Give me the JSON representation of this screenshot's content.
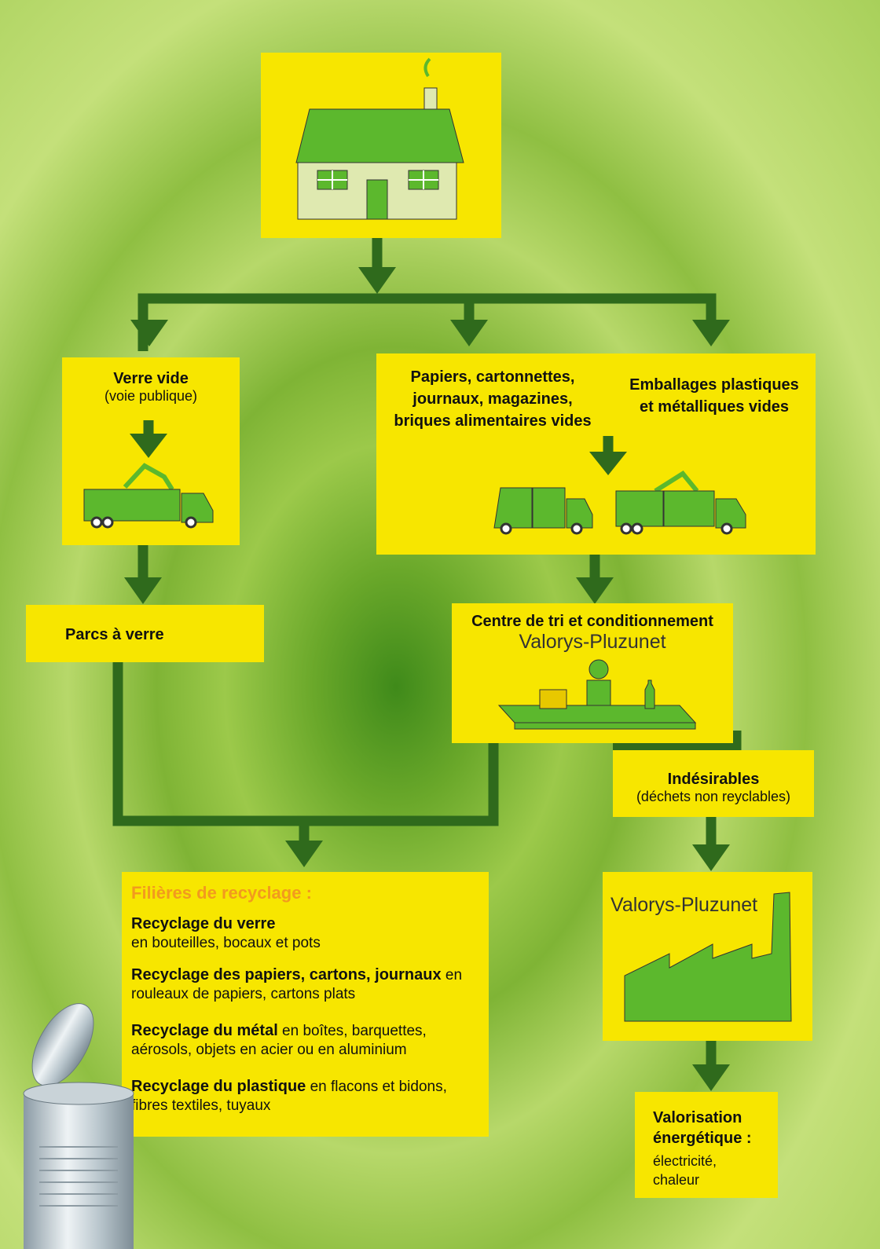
{
  "house": {},
  "verre": {
    "title": "Verre vide",
    "subtitle": "(voie publique)"
  },
  "papiers": {
    "lines": [
      "Papiers, cartonnettes,",
      "journaux, magazines,",
      "briques alimentaires vides"
    ]
  },
  "emballages": {
    "lines": [
      "Emballages plastiques",
      "et métalliques vides"
    ]
  },
  "parcs": {
    "title": "Parcs à verre"
  },
  "centre": {
    "title": "Centre de tri et conditionnement",
    "name": "Valorys-Pluzunet"
  },
  "indesirables": {
    "title": "Indésirables",
    "subtitle": "(déchets non reyclables)"
  },
  "usine": {
    "name": "Valorys-Pluzunet"
  },
  "valorisation": {
    "title_lines": [
      "Valorisation",
      "énergétique :"
    ],
    "lines": [
      "électricité,",
      "chaleur"
    ]
  },
  "filieres": {
    "title": "Filières de recyclage :",
    "items": [
      {
        "bold": "Recyclage du verre",
        "text": "en bouteilles, bocaux et pots"
      },
      {
        "bold": "Recyclage des papiers, cartons, journaux",
        "text": "en rouleaux de papiers, cartons plats"
      },
      {
        "bold": "Recyclage du métal",
        "text": "en boîtes, barquettes, aérosols, objets en acier ou en aluminium"
      },
      {
        "bold": "Recyclage du plastique",
        "text": "en flacons et bidons, fibres textiles, tuyaux"
      }
    ]
  }
}
